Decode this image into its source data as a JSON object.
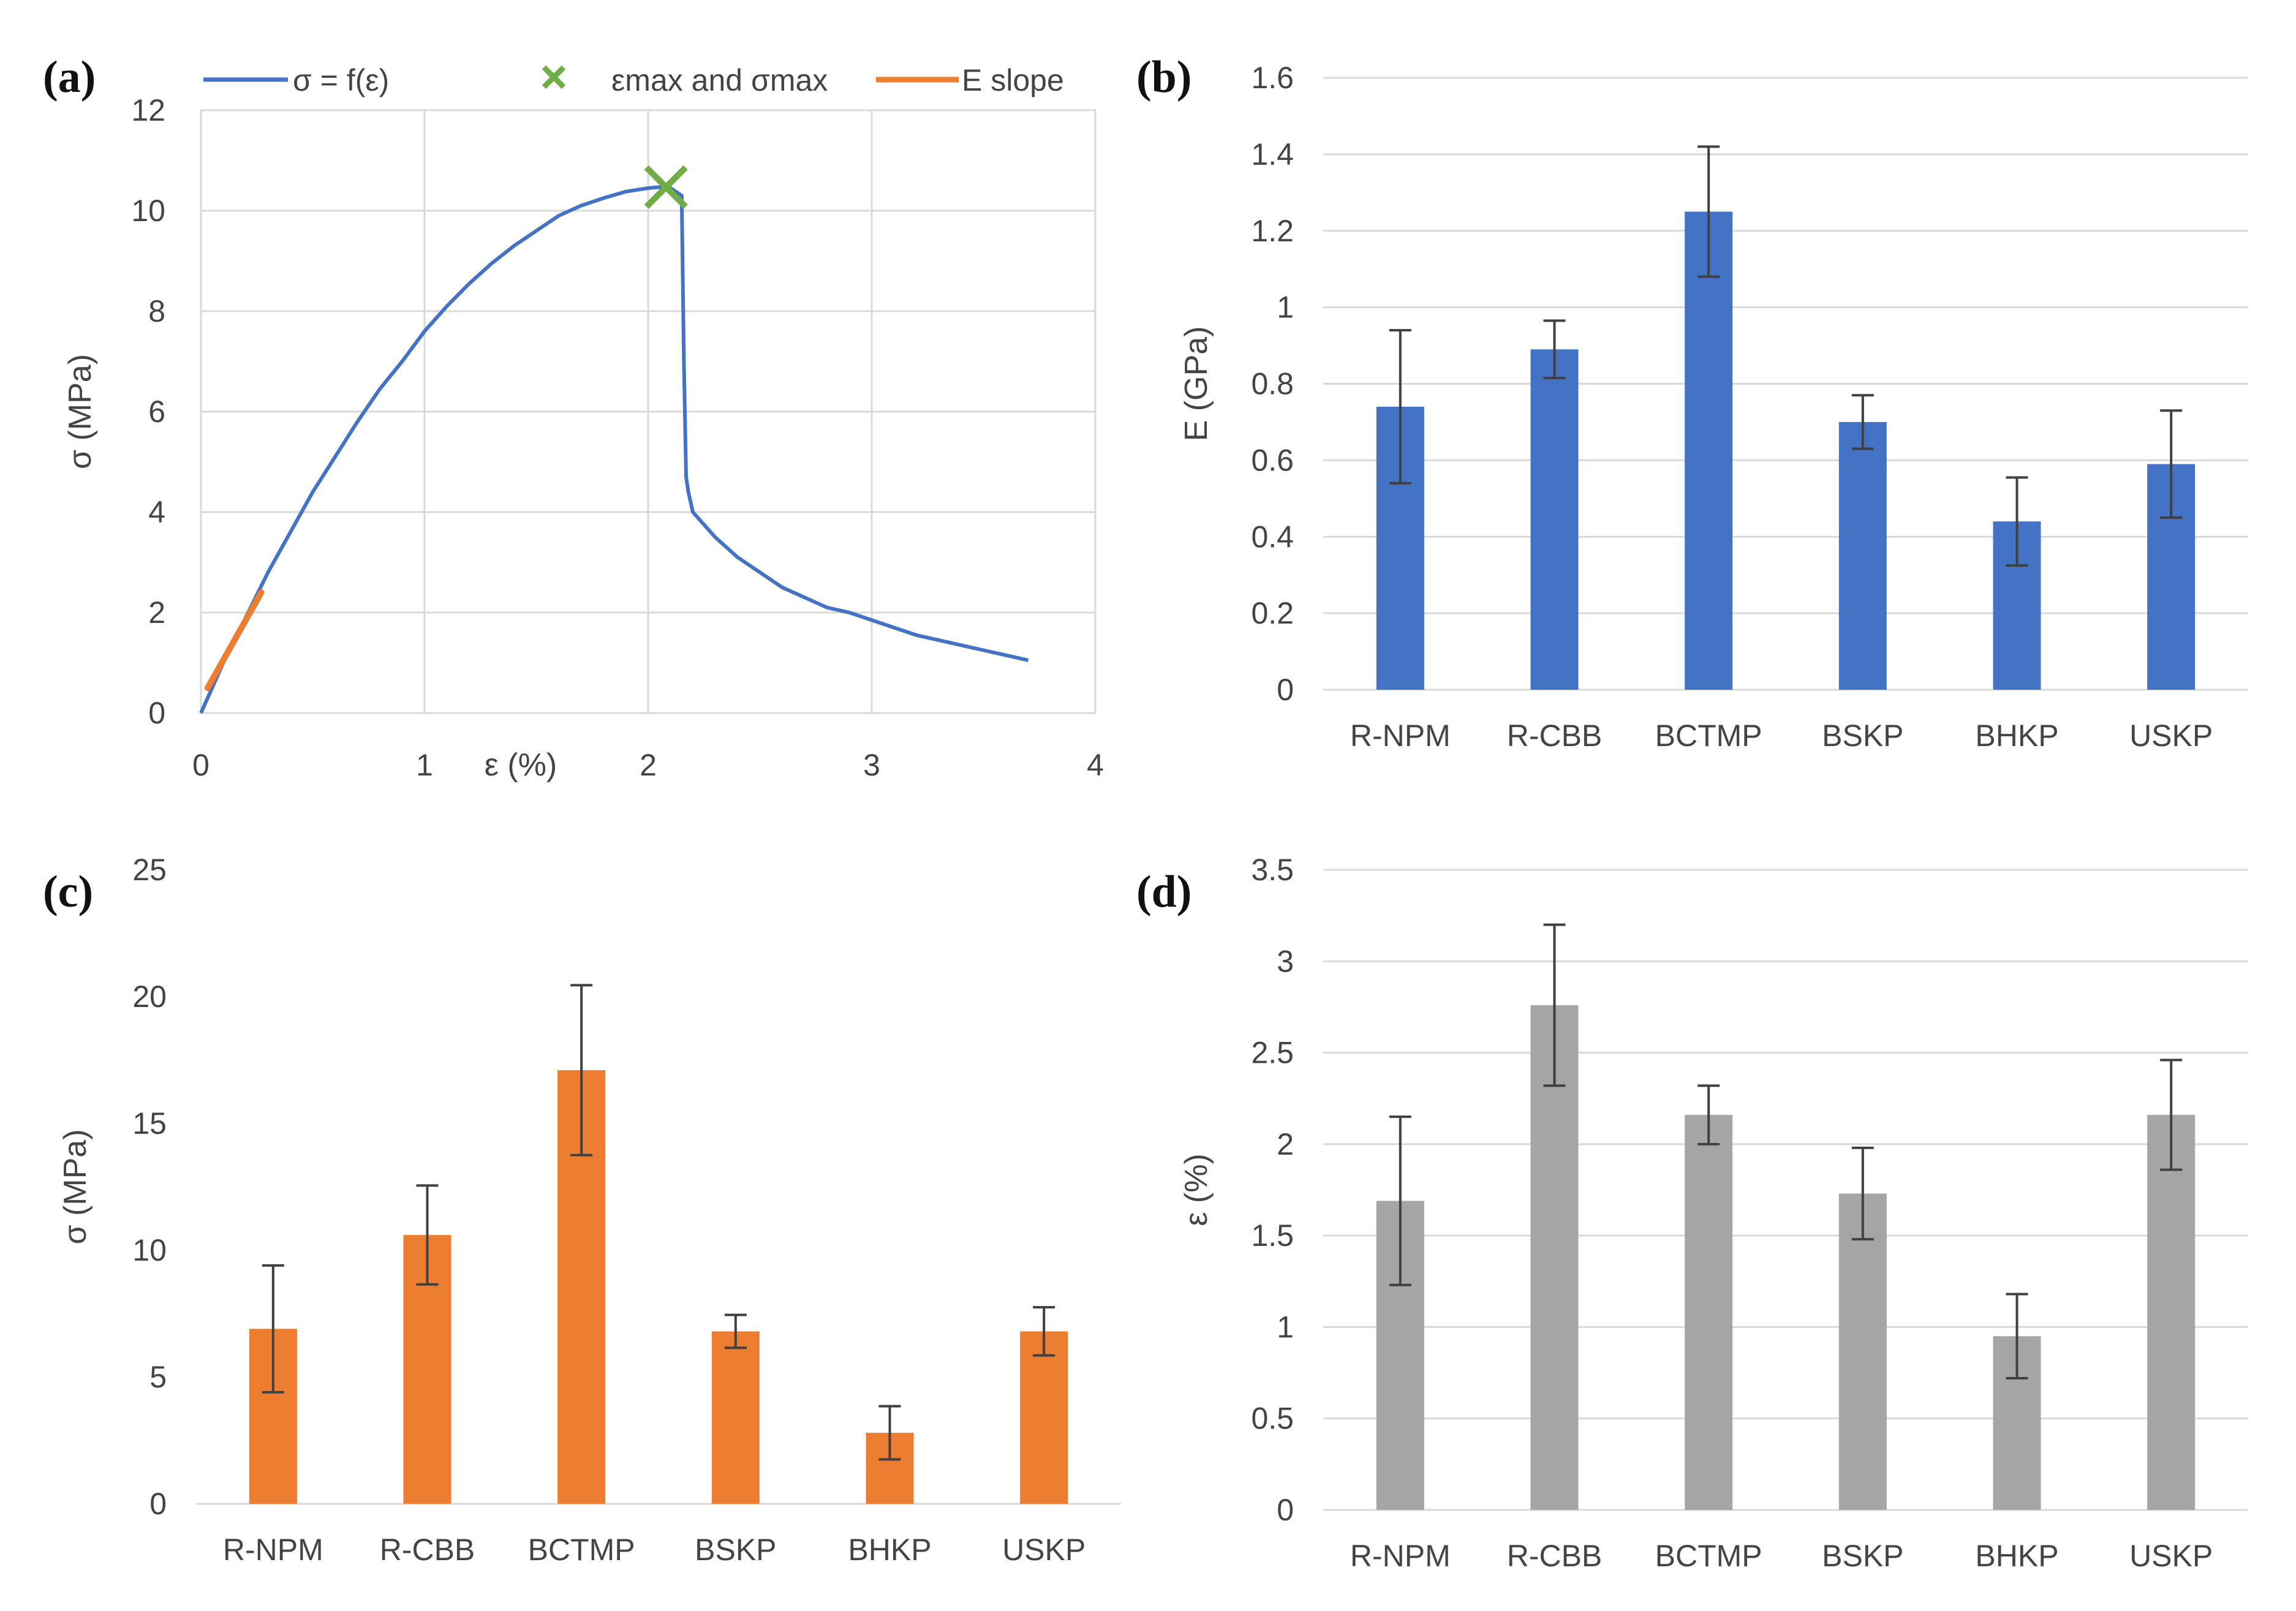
{
  "panels": {
    "a": {
      "letter": "(a)"
    },
    "b": {
      "letter": "(b)"
    },
    "c": {
      "letter": "(c)"
    },
    "d": {
      "letter": "(d)"
    }
  },
  "legend": {
    "curve": "σ = f(ε)",
    "max_marker": "εmax and σmax",
    "slope": "E slope"
  },
  "colors": {
    "curve": "#4472c4",
    "slope": "#ed7d31",
    "marker": "#70ad47",
    "bars_b": "#4472c4",
    "bars_c": "#ed7d31",
    "bars_d": "#a5a5a5"
  },
  "chart_data": [
    {
      "id": "a",
      "type": "line",
      "xlabel": "ε (%)",
      "ylabel": "σ (MPa)",
      "xlim": [
        0,
        4
      ],
      "ylim": [
        0,
        12
      ],
      "xticks": [
        0,
        1,
        2,
        3,
        4
      ],
      "yticks": [
        0,
        2,
        4,
        6,
        8,
        10,
        12
      ],
      "grid": true,
      "legend_position": "top",
      "series": [
        {
          "name": "σ = f(ε)",
          "x": [
            0,
            0.05,
            0.1,
            0.2,
            0.3,
            0.4,
            0.5,
            0.6,
            0.7,
            0.8,
            0.9,
            1.0,
            1.1,
            1.2,
            1.3,
            1.4,
            1.5,
            1.6,
            1.7,
            1.8,
            1.9,
            2.0,
            2.05,
            2.1,
            2.15,
            2.16,
            2.17,
            2.18,
            2.2,
            2.3,
            2.4,
            2.5,
            2.6,
            2.7,
            2.8,
            2.9,
            3.0,
            3.1,
            3.2,
            3.3,
            3.4,
            3.5,
            3.6,
            3.7
          ],
          "y": [
            0,
            0.5,
            1.0,
            1.9,
            2.8,
            3.6,
            4.4,
            5.1,
            5.8,
            6.45,
            7.0,
            7.6,
            8.1,
            8.55,
            8.95,
            9.3,
            9.6,
            9.9,
            10.1,
            10.25,
            10.38,
            10.45,
            10.47,
            10.45,
            10.3,
            7.0,
            4.7,
            4.4,
            4.0,
            3.5,
            3.1,
            2.8,
            2.5,
            2.3,
            2.1,
            2.0,
            1.85,
            1.7,
            1.55,
            1.45,
            1.35,
            1.25,
            1.15,
            1.05
          ]
        },
        {
          "name": "E slope",
          "x": [
            0.03,
            0.27
          ],
          "y": [
            0.5,
            2.4
          ]
        },
        {
          "name": "εmax and σmax",
          "x": [
            2.08
          ],
          "y": [
            10.47
          ]
        }
      ]
    },
    {
      "id": "b",
      "type": "bar",
      "ylabel": "E (GPa)",
      "categories": [
        "R-NPM",
        "R-CBB",
        "BCTMP",
        "BSKP",
        "BHKP",
        "USKP"
      ],
      "values": [
        0.74,
        0.89,
        1.25,
        0.7,
        0.44,
        0.59
      ],
      "errors": [
        0.2,
        0.075,
        0.17,
        0.07,
        0.115,
        0.14
      ],
      "ylim": [
        0,
        1.6
      ],
      "yticks": [
        "0",
        "0.2",
        "0.4",
        "0.6",
        "0.8",
        "1",
        "1.2",
        "1.4",
        "1.6"
      ],
      "grid": true
    },
    {
      "id": "c",
      "type": "bar",
      "ylabel": "σ (MPa)",
      "categories": [
        "R-NPM",
        "R-CBB",
        "BCTMP",
        "BSKP",
        "BHKP",
        "USKP"
      ],
      "values": [
        6.9,
        10.6,
        17.1,
        6.8,
        2.8,
        6.8
      ],
      "errors": [
        2.5,
        1.95,
        3.35,
        0.65,
        1.05,
        0.95
      ],
      "ylim": [
        0,
        25
      ],
      "yticks": [
        "0",
        "5",
        "10",
        "15",
        "20",
        "25"
      ],
      "grid": false
    },
    {
      "id": "d",
      "type": "bar",
      "ylabel": "ε (%)",
      "categories": [
        "R-NPM",
        "R-CBB",
        "BCTMP",
        "BSKP",
        "BHKP",
        "USKP"
      ],
      "values": [
        1.69,
        2.76,
        2.16,
        1.73,
        0.95,
        2.16
      ],
      "errors": [
        0.46,
        0.44,
        0.16,
        0.25,
        0.23,
        0.3
      ],
      "ylim": [
        0,
        3.5
      ],
      "yticks": [
        "0",
        "0.5",
        "1",
        "1.5",
        "2",
        "2.5",
        "3",
        "3.5"
      ],
      "grid": true
    }
  ]
}
